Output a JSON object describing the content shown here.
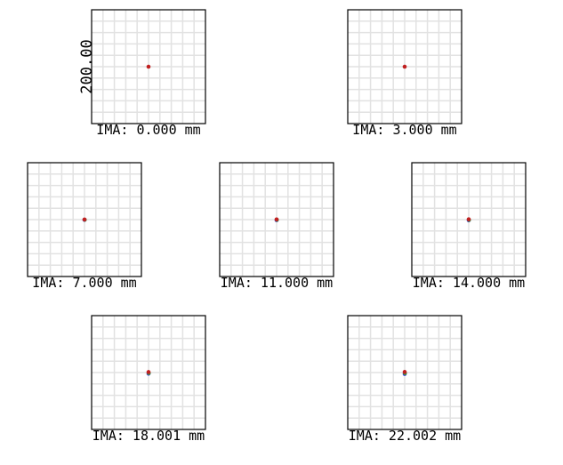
{
  "scale_label": "200.00",
  "panels": [
    {
      "label": "IMA: 0.000 mm"
    },
    {
      "label": "IMA: 3.000 mm"
    },
    {
      "label": "IMA: 7.000 mm"
    },
    {
      "label": "IMA: 11.000 mm"
    },
    {
      "label": "IMA: 14.000 mm"
    },
    {
      "label": "IMA: 18.001 mm"
    },
    {
      "label": "IMA: 22.002 mm"
    }
  ]
}
